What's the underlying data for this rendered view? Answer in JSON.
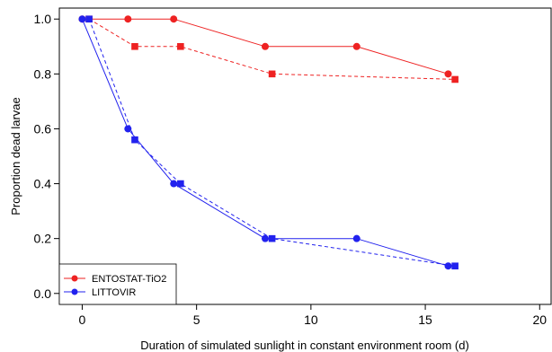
{
  "chart_data": {
    "type": "line",
    "xlabel": "Duration of simulated sunlight in constant environment room (d)",
    "ylabel": "Proportion dead larvae",
    "xlim": [
      -1,
      20.5
    ],
    "ylim": [
      -0.04,
      1.04
    ],
    "xticks": [
      0,
      5,
      10,
      15,
      20
    ],
    "yticks": [
      0.0,
      0.2,
      0.4,
      0.6,
      0.8,
      1.0
    ],
    "ytick_labels": [
      "0.0",
      "0.2",
      "0.4",
      "0.6",
      "0.8",
      "1.0"
    ],
    "grid": false,
    "legend": {
      "position": "bottom-left",
      "entries": [
        {
          "label": "ENTOSTAT-TiO2",
          "color": "#ee2222"
        },
        {
          "label": "LITTOVIR",
          "color": "#2222ee"
        }
      ]
    },
    "series": [
      {
        "name": "ENTOSTAT-TiO2",
        "color": "#ee2222",
        "line": "solid",
        "marker": "circle",
        "x": [
          0,
          2,
          4,
          8,
          12,
          16
        ],
        "y": [
          1.0,
          1.0,
          1.0,
          0.9,
          0.9,
          0.8
        ]
      },
      {
        "name": "ENTOSTAT-TiO2",
        "color": "#ee2222",
        "line": "dashed",
        "marker": "square",
        "x": [
          0.3,
          2.3,
          4.3,
          8.3,
          16.3
        ],
        "y": [
          1.0,
          0.9,
          0.9,
          0.8,
          0.78
        ]
      },
      {
        "name": "LITTOVIR",
        "color": "#2222ee",
        "line": "solid",
        "marker": "circle",
        "x": [
          0,
          2,
          4,
          8,
          12,
          16
        ],
        "y": [
          1.0,
          0.6,
          0.4,
          0.2,
          0.2,
          0.1
        ]
      },
      {
        "name": "LITTOVIR",
        "color": "#2222ee",
        "line": "dashed",
        "marker": "square",
        "x": [
          0.3,
          2.3,
          4.3,
          8.3,
          16.3
        ],
        "y": [
          1.0,
          0.56,
          0.4,
          0.2,
          0.1
        ]
      }
    ]
  }
}
